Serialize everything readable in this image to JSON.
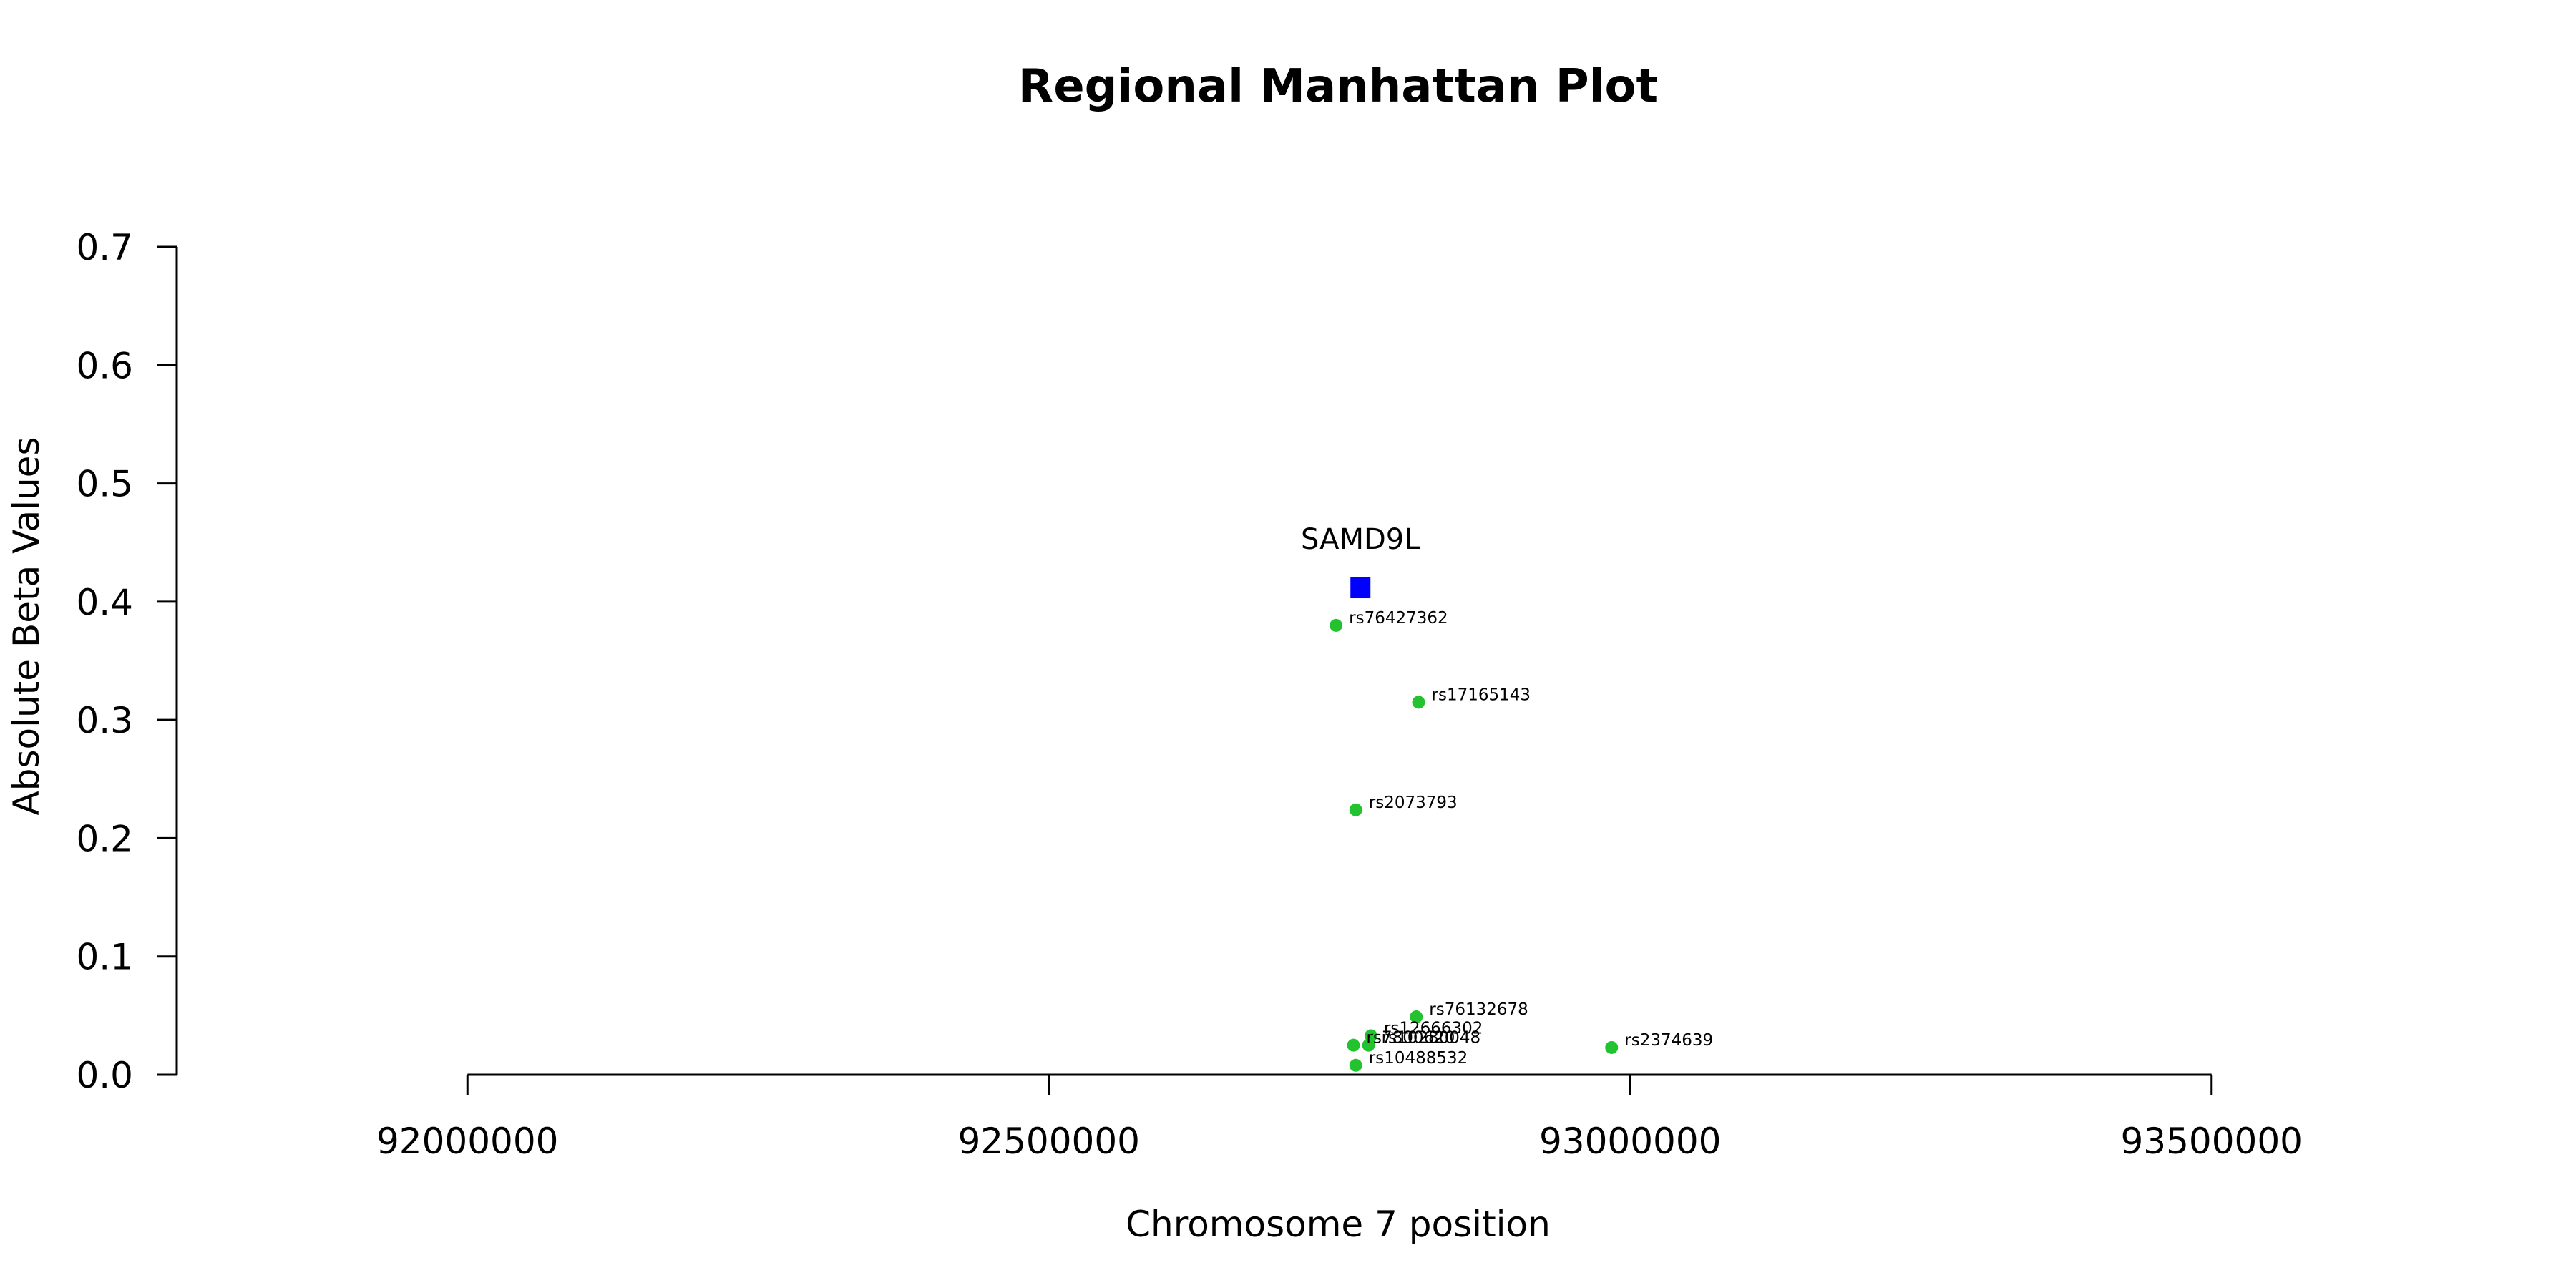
{
  "chart_data": {
    "type": "scatter",
    "title": "Regional Manhattan Plot",
    "xlabel": "Chromosome 7 position",
    "ylabel": "Absolute Beta Values",
    "xlim": [
      91750000,
      93750000
    ],
    "ylim": [
      0,
      0.7
    ],
    "x_ticks": [
      92000000,
      92500000,
      93000000,
      93500000
    ],
    "x_tick_labels": [
      "92000000",
      "92500000",
      "93000000",
      "93500000"
    ],
    "y_ticks": [
      0,
      0.1,
      0.2,
      0.3,
      0.4,
      0.5,
      0.6,
      0.7
    ],
    "y_tick_labels": [
      "0.0",
      "0.1",
      "0.2",
      "0.3",
      "0.4",
      "0.5",
      "0.6",
      "0.7"
    ],
    "grid": false,
    "colors": {
      "snp": "#22c32e",
      "gene": "#0000ff"
    },
    "series": [
      {
        "points": [
          {
            "label": "rs76427362",
            "x": 92747000,
            "y": 0.38
          },
          {
            "label": "rs17165143",
            "x": 92818000,
            "y": 0.315
          },
          {
            "label": "rs2073793",
            "x": 92764000,
            "y": 0.224
          },
          {
            "label": "rs76132678",
            "x": 92816000,
            "y": 0.049
          },
          {
            "label": "rs12666302",
            "x": 92777000,
            "y": 0.033
          },
          {
            "label": "rs10280048",
            "x": 92775000,
            "y": 0.025
          },
          {
            "label": "rs7800620",
            "x": 92762000,
            "y": 0.025
          },
          {
            "label": "rs2374639",
            "x": 92984000,
            "y": 0.023
          },
          {
            "label": "rs10488532",
            "x": 92764000,
            "y": 0.008
          }
        ]
      },
      {
        "marker": "square",
        "points": [
          {
            "label": "SAMD9L",
            "x": 92768000,
            "y": 0.412
          }
        ]
      }
    ]
  }
}
